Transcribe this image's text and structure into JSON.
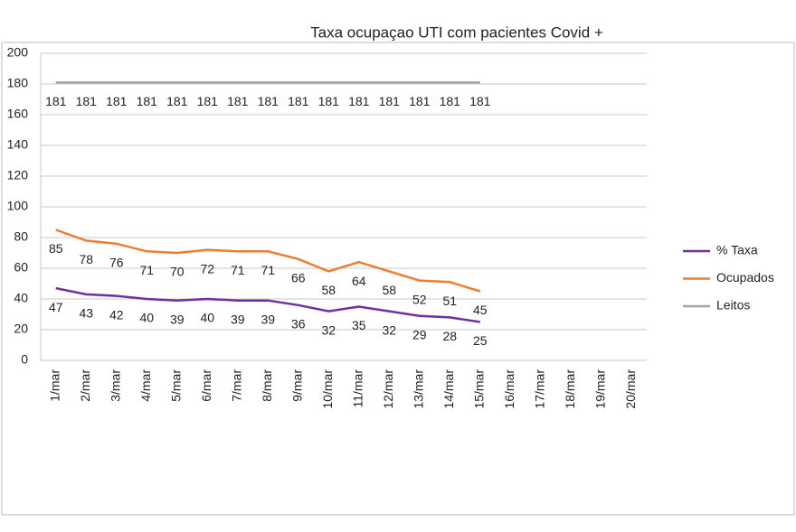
{
  "chart_data": {
    "type": "line",
    "title": "Taxa ocupaçao UTI com pacientes Covid +",
    "categories": [
      "1/mar",
      "2/mar",
      "3/mar",
      "4/mar",
      "5/mar",
      "6/mar",
      "7/mar",
      "8/mar",
      "9/mar",
      "10/mar",
      "11/mar",
      "12/mar",
      "13/mar",
      "14/mar",
      "15/mar",
      "16/mar",
      "17/mar",
      "18/mar",
      "19/mar",
      "20/mar"
    ],
    "series": [
      {
        "name": "% Taxa",
        "color": "#7030a0",
        "values": [
          47,
          43,
          42,
          40,
          39,
          40,
          39,
          39,
          36,
          32,
          35,
          32,
          29,
          28,
          25,
          null,
          null,
          null,
          null,
          null
        ]
      },
      {
        "name": "Ocupados",
        "color": "#ed7d31",
        "values": [
          85,
          78,
          76,
          71,
          70,
          72,
          71,
          71,
          66,
          58,
          64,
          58,
          52,
          51,
          45,
          null,
          null,
          null,
          null,
          null
        ]
      },
      {
        "name": "Leitos",
        "color": "#a5a5a5",
        "values": [
          181,
          181,
          181,
          181,
          181,
          181,
          181,
          181,
          181,
          181,
          181,
          181,
          181,
          181,
          181,
          null,
          null,
          null,
          null,
          null
        ]
      }
    ],
    "ylim": [
      0,
      200
    ],
    "yticks": [
      0,
      20,
      40,
      60,
      80,
      100,
      120,
      140,
      160,
      180,
      200
    ],
    "grid": true,
    "legend": "right"
  }
}
